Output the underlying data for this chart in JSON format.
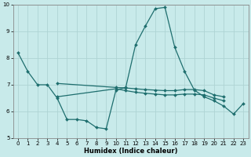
{
  "xlabel": "Humidex (Indice chaleur)",
  "bg_color": "#c8eaea",
  "grid_color": "#aed4d4",
  "line_color": "#1e6e6e",
  "xlim": [
    -0.5,
    23.5
  ],
  "ylim": [
    5,
    10
  ],
  "yticks": [
    5,
    6,
    7,
    8,
    9,
    10
  ],
  "xticks": [
    0,
    1,
    2,
    3,
    4,
    5,
    6,
    7,
    8,
    9,
    10,
    11,
    12,
    13,
    14,
    15,
    16,
    17,
    18,
    19,
    20,
    21,
    22,
    23
  ],
  "series": [
    [
      8.2,
      7.5,
      7.0,
      7.0,
      6.5,
      5.7,
      5.7,
      5.65,
      5.4,
      5.35,
      6.8,
      6.9,
      8.5,
      9.2,
      9.85,
      9.9,
      8.4,
      7.5,
      6.8,
      6.55,
      6.4,
      6.2,
      5.9,
      6.3
    ],
    [
      null,
      null,
      null,
      null,
      6.55,
      null,
      null,
      null,
      null,
      null,
      6.85,
      6.78,
      6.72,
      6.68,
      6.65,
      6.62,
      6.62,
      6.65,
      6.65,
      6.62,
      6.5,
      6.4,
      null,
      null
    ],
    [
      null,
      null,
      null,
      null,
      7.05,
      null,
      null,
      null,
      null,
      null,
      6.9,
      6.88,
      6.85,
      6.82,
      6.8,
      6.78,
      6.78,
      6.82,
      6.82,
      6.78,
      6.62,
      6.55,
      null,
      null
    ]
  ],
  "marker": "D",
  "markersize": 2.0,
  "linewidth": 0.9,
  "tick_fontsize": 5.0,
  "xlabel_fontsize": 6.0
}
